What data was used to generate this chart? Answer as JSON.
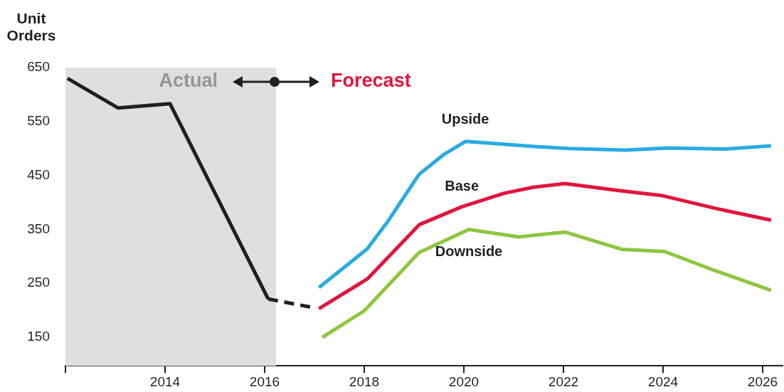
{
  "chart_data": {
    "type": "line",
    "ylabel": "Unit Orders",
    "xlim": [
      2012,
      2026.4
    ],
    "xticks": [
      {
        "value": 2012,
        "label": null
      },
      2014,
      2016,
      2018,
      2020,
      2022,
      2024,
      2026
    ],
    "ylim": [
      97,
      650
    ],
    "yticks": [
      150,
      250,
      350,
      450,
      550,
      650
    ],
    "grid": false,
    "legend": false,
    "marker": "none",
    "bands": [
      {
        "axis": "x",
        "from": 2012,
        "to": 2016.23,
        "label": "Actual",
        "color": "#e0dfde"
      }
    ],
    "annotations": [
      "Forecast"
    ],
    "series": [
      {
        "color": "#231f20",
        "x": [
          2012.04,
          2013.06,
          2014.1,
          2016.07
        ],
        "values": [
          630,
          575,
          583,
          221
        ]
      },
      {
        "color": "#231f20",
        "line_style": "dashed",
        "x": [
          2016.07,
          2016.97
        ],
        "values": [
          221,
          205
        ]
      },
      {
        "name": "Upside",
        "color": "#29abe2",
        "x": [
          2017.09,
          2018.06,
          2018.46,
          2019.1,
          2019.6,
          2020.03,
          2020.67,
          2021.53,
          2022.1,
          2023.24,
          2024.1,
          2025.24,
          2026.17
        ],
        "values": [
          242,
          314,
          363,
          452,
          489,
          513,
          509,
          503,
          500,
          497,
          501,
          499,
          505
        ]
      },
      {
        "name": "Base",
        "color": "#e0163c",
        "x": [
          2017.09,
          2018.06,
          2019.11,
          2019.96,
          2020.81,
          2021.39,
          2022.03,
          2023.1,
          2023.96,
          2025.1,
          2026.17
        ],
        "values": [
          203,
          258,
          359,
          392,
          417,
          428,
          435,
          422,
          413,
          388,
          367
        ]
      },
      {
        "name": "Downside",
        "color": "#8dc63f",
        "x": [
          2017.16,
          2018.0,
          2019.1,
          2020.1,
          2021.1,
          2022.03,
          2023.17,
          2024.03,
          2024.97,
          2026.17
        ],
        "values": [
          150,
          199,
          307,
          350,
          336,
          345,
          313,
          309,
          276,
          237
        ]
      }
    ]
  }
}
